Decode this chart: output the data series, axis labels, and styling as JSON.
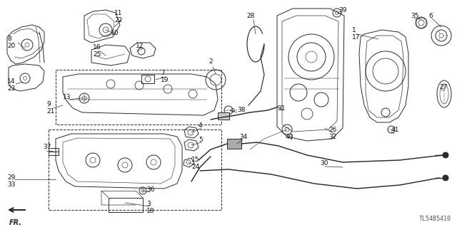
{
  "part_code": "TL54B5410",
  "bg_color": "#ffffff",
  "line_color": "#2a2a2a",
  "label_color": "#111111",
  "figsize": [
    6.4,
    3.19
  ],
  "dpi": 100
}
